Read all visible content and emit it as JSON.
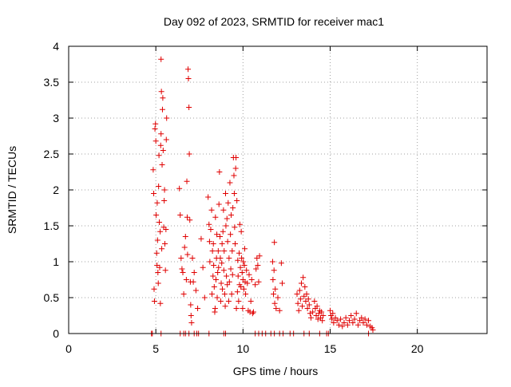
{
  "chart_data": {
    "type": "scatter",
    "title": "Day 092 of 2023, SRMTID for receiver mac1",
    "xlabel": "GPS time / hours",
    "ylabel": "SRMTID / TECUs",
    "xlim": [
      0,
      24
    ],
    "ylim": [
      0,
      4
    ],
    "xticks": [
      "0",
      "5",
      "10",
      "15",
      "20"
    ],
    "yticks": [
      "0",
      "0.5",
      "1",
      "1.5",
      "2",
      "2.5",
      "3",
      "3.5",
      "4"
    ],
    "grid": true,
    "marker": "+",
    "color": "#e00000",
    "series": [
      {
        "name": "",
        "points": [
          [
            4.85,
            2.28
          ],
          [
            4.88,
            1.95
          ],
          [
            4.9,
            0.62
          ],
          [
            4.92,
            0.45
          ],
          [
            4.95,
            2.85
          ],
          [
            4.98,
            2.92
          ],
          [
            5.0,
            2.68
          ],
          [
            5.02,
            1.65
          ],
          [
            5.05,
            1.12
          ],
          [
            5.07,
            0.95
          ],
          [
            5.08,
            1.82
          ],
          [
            5.1,
            1.3
          ],
          [
            5.12,
            0.85
          ],
          [
            5.14,
            0.7
          ],
          [
            5.16,
            2.05
          ],
          [
            5.18,
            2.48
          ],
          [
            5.2,
            1.55
          ],
          [
            5.22,
            0.92
          ],
          [
            5.25,
            1.42
          ],
          [
            5.26,
            0.42
          ],
          [
            5.28,
            2.62
          ],
          [
            5.3,
            2.78
          ],
          [
            5.3,
            3.82
          ],
          [
            5.32,
            3.37
          ],
          [
            5.34,
            1.18
          ],
          [
            5.36,
            2.35
          ],
          [
            5.38,
            3.12
          ],
          [
            5.4,
            3.28
          ],
          [
            5.42,
            2.55
          ],
          [
            5.45,
            1.48
          ],
          [
            5.48,
            1.85
          ],
          [
            5.5,
            2.0
          ],
          [
            5.52,
            1.25
          ],
          [
            5.55,
            0.88
          ],
          [
            5.58,
            1.45
          ],
          [
            5.6,
            2.7
          ],
          [
            5.62,
            3.0
          ],
          [
            6.35,
            2.02
          ],
          [
            6.4,
            1.65
          ],
          [
            6.45,
            1.05
          ],
          [
            6.5,
            0.9
          ],
          [
            6.55,
            0.85
          ],
          [
            6.6,
            0.55
          ],
          [
            6.65,
            1.2
          ],
          [
            6.7,
            1.35
          ],
          [
            6.75,
            0.75
          ],
          [
            6.78,
            2.12
          ],
          [
            6.8,
            1.62
          ],
          [
            6.82,
            1.1
          ],
          [
            6.85,
            3.68
          ],
          [
            6.87,
            3.55
          ],
          [
            6.9,
            3.15
          ],
          [
            6.92,
            2.5
          ],
          [
            6.95,
            1.58
          ],
          [
            6.98,
            0.72
          ],
          [
            7.0,
            0.4
          ],
          [
            7.02,
            0.25
          ],
          [
            7.05,
            0.15
          ],
          [
            7.1,
            1.05
          ],
          [
            7.15,
            0.72
          ],
          [
            7.2,
            0.85
          ],
          [
            7.3,
            0.6
          ],
          [
            7.4,
            0.35
          ],
          [
            7.6,
            1.32
          ],
          [
            7.7,
            0.92
          ],
          [
            7.8,
            0.5
          ],
          [
            8.0,
            1.9
          ],
          [
            8.05,
            1.52
          ],
          [
            8.08,
            1.28
          ],
          [
            8.1,
            1.0
          ],
          [
            8.15,
            1.45
          ],
          [
            8.2,
            1.72
          ],
          [
            8.22,
            0.55
          ],
          [
            8.25,
            1.15
          ],
          [
            8.28,
            0.8
          ],
          [
            8.3,
            1.25
          ],
          [
            8.32,
            0.95
          ],
          [
            8.35,
            0.65
          ],
          [
            8.38,
            0.3
          ],
          [
            8.4,
            0.35
          ],
          [
            8.42,
            1.62
          ],
          [
            8.45,
            0.75
          ],
          [
            8.48,
            1.05
          ],
          [
            8.5,
            1.38
          ],
          [
            8.52,
            0.5
          ],
          [
            8.55,
            0.85
          ],
          [
            8.58,
            1.15
          ],
          [
            8.6,
            0.92
          ],
          [
            8.62,
            1.8
          ],
          [
            8.65,
            2.25
          ],
          [
            8.68,
            1.35
          ],
          [
            8.7,
            1.05
          ],
          [
            8.72,
            0.45
          ],
          [
            8.75,
            0.7
          ],
          [
            8.78,
            0.98
          ],
          [
            8.8,
            1.25
          ],
          [
            8.82,
            0.62
          ],
          [
            8.85,
            1.42
          ],
          [
            8.88,
            1.72
          ],
          [
            8.9,
            0.88
          ],
          [
            8.92,
            1.15
          ],
          [
            8.95,
            0.55
          ],
          [
            8.98,
            0.38
          ],
          [
            9.0,
            1.95
          ],
          [
            9.02,
            1.5
          ],
          [
            9.05,
            0.8
          ],
          [
            9.08,
            1.6
          ],
          [
            9.1,
            0.68
          ],
          [
            9.12,
            1.28
          ],
          [
            9.15,
            1.82
          ],
          [
            9.18,
            0.45
          ],
          [
            9.2,
            1.05
          ],
          [
            9.22,
            0.72
          ],
          [
            9.25,
            2.1
          ],
          [
            9.28,
            1.38
          ],
          [
            9.3,
            0.9
          ],
          [
            9.32,
            1.65
          ],
          [
            9.35,
            0.55
          ],
          [
            9.38,
            1.15
          ],
          [
            9.4,
            0.82
          ],
          [
            9.42,
            1.75
          ],
          [
            9.45,
            2.45
          ],
          [
            9.48,
            2.2
          ],
          [
            9.5,
            1.95
          ],
          [
            9.52,
            1.48
          ],
          [
            9.55,
            1.25
          ],
          [
            9.58,
            2.3
          ],
          [
            9.6,
            2.45
          ],
          [
            9.62,
            0.35
          ],
          [
            9.65,
            1.85
          ],
          [
            9.68,
            0.58
          ],
          [
            9.7,
            1.02
          ],
          [
            9.72,
            0.8
          ],
          [
            9.75,
            0.45
          ],
          [
            9.78,
            1.12
          ],
          [
            9.8,
            0.68
          ],
          [
            9.82,
            1.52
          ],
          [
            9.85,
            0.92
          ],
          [
            9.88,
            0.65
          ],
          [
            9.9,
            1.42
          ],
          [
            9.92,
            1.05
          ],
          [
            9.95,
            0.85
          ],
          [
            9.98,
            0.35
          ],
          [
            10.0,
            0.75
          ],
          [
            10.02,
            1.0
          ],
          [
            10.05,
            0.62
          ],
          [
            10.08,
            0.95
          ],
          [
            10.1,
            1.18
          ],
          [
            10.12,
            0.72
          ],
          [
            10.15,
            0.55
          ],
          [
            10.2,
            0.88
          ],
          [
            10.25,
            0.7
          ],
          [
            10.3,
            0.32
          ],
          [
            10.35,
            0.82
          ],
          [
            10.4,
            0.3
          ],
          [
            10.45,
            0.45
          ],
          [
            10.5,
            0.75
          ],
          [
            10.55,
            0.28
          ],
          [
            10.6,
            0.3
          ],
          [
            10.7,
            0.68
          ],
          [
            10.75,
            0.9
          ],
          [
            10.8,
            1.05
          ],
          [
            10.85,
            0.95
          ],
          [
            10.9,
            0.72
          ],
          [
            10.95,
            1.08
          ],
          [
            11.7,
            1.0
          ],
          [
            11.72,
            0.75
          ],
          [
            11.75,
            0.55
          ],
          [
            11.78,
            0.88
          ],
          [
            11.8,
            1.27
          ],
          [
            11.82,
            0.42
          ],
          [
            11.85,
            0.62
          ],
          [
            11.9,
            0.35
          ],
          [
            12.0,
            0.5
          ],
          [
            12.1,
            0.32
          ],
          [
            12.2,
            0.98
          ],
          [
            12.25,
            0.7
          ],
          [
            13.1,
            0.55
          ],
          [
            13.15,
            0.42
          ],
          [
            13.2,
            0.32
          ],
          [
            13.25,
            0.6
          ],
          [
            13.3,
            0.48
          ],
          [
            13.35,
            0.7
          ],
          [
            13.4,
            0.38
          ],
          [
            13.45,
            0.78
          ],
          [
            13.5,
            0.52
          ],
          [
            13.55,
            0.65
          ],
          [
            13.6,
            0.45
          ],
          [
            13.65,
            0.55
          ],
          [
            13.7,
            0.35
          ],
          [
            13.75,
            0.48
          ],
          [
            13.8,
            0.4
          ],
          [
            13.85,
            0.28
          ],
          [
            13.9,
            0.22
          ],
          [
            14.0,
            0.3
          ],
          [
            14.1,
            0.45
          ],
          [
            14.15,
            0.35
          ],
          [
            14.2,
            0.25
          ],
          [
            14.25,
            0.38
          ],
          [
            14.3,
            0.2
          ],
          [
            14.35,
            0.28
          ],
          [
            14.4,
            0.32
          ],
          [
            14.45,
            0.22
          ],
          [
            14.5,
            0.3
          ],
          [
            14.55,
            0.18
          ],
          [
            14.6,
            0.25
          ],
          [
            15.0,
            0.32
          ],
          [
            15.05,
            0.25
          ],
          [
            15.1,
            0.2
          ],
          [
            15.15,
            0.28
          ],
          [
            15.2,
            0.15
          ],
          [
            15.3,
            0.22
          ],
          [
            15.4,
            0.18
          ],
          [
            15.5,
            0.12
          ],
          [
            15.6,
            0.2
          ],
          [
            15.7,
            0.1
          ],
          [
            15.8,
            0.15
          ],
          [
            15.9,
            0.22
          ],
          [
            16.0,
            0.12
          ],
          [
            16.1,
            0.18
          ],
          [
            16.2,
            0.25
          ],
          [
            16.3,
            0.15
          ],
          [
            16.4,
            0.2
          ],
          [
            16.5,
            0.28
          ],
          [
            16.6,
            0.12
          ],
          [
            16.7,
            0.18
          ],
          [
            16.8,
            0.22
          ],
          [
            16.9,
            0.15
          ],
          [
            17.0,
            0.2
          ],
          [
            17.1,
            0.12
          ],
          [
            17.2,
            0.18
          ],
          [
            17.3,
            0.1
          ],
          [
            17.4,
            0.08
          ],
          [
            17.45,
            0.05
          ],
          [
            4.75,
            0.0
          ],
          [
            4.8,
            0.0
          ],
          [
            5.3,
            0.0
          ],
          [
            6.4,
            0.0
          ],
          [
            6.6,
            0.0
          ],
          [
            6.7,
            0.0
          ],
          [
            6.9,
            0.0
          ],
          [
            7.2,
            0.0
          ],
          [
            7.35,
            0.0
          ],
          [
            7.45,
            0.0
          ],
          [
            8.05,
            0.0
          ],
          [
            8.9,
            0.0
          ],
          [
            9.0,
            0.0
          ],
          [
            10.7,
            0.0
          ],
          [
            10.9,
            0.0
          ],
          [
            11.1,
            0.0
          ],
          [
            11.3,
            0.0
          ],
          [
            11.6,
            0.0
          ],
          [
            11.8,
            0.0
          ],
          [
            12.1,
            0.0
          ],
          [
            12.3,
            0.0
          ],
          [
            12.7,
            0.0
          ],
          [
            12.9,
            0.0
          ],
          [
            13.5,
            0.0
          ],
          [
            13.8,
            0.0
          ],
          [
            14.4,
            0.0
          ],
          [
            14.8,
            0.0
          ],
          [
            14.9,
            0.0
          ],
          [
            17.2,
            0.0
          ]
        ]
      }
    ]
  }
}
